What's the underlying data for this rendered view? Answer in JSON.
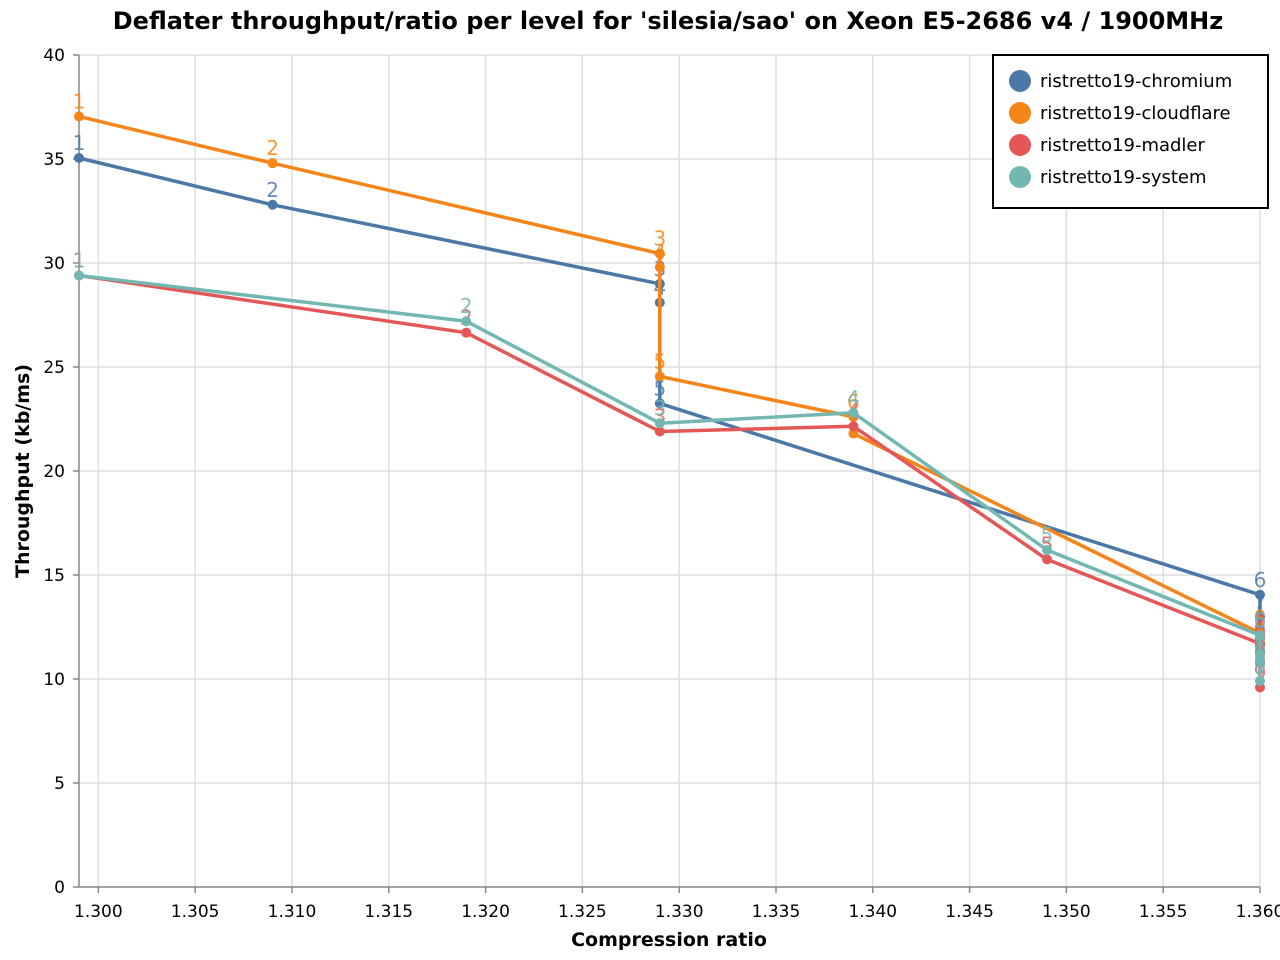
{
  "chart_data": {
    "type": "line",
    "title": "Deflater throughput/ratio per level for 'silesia/sao' on Xeon E5-2686 v4 / 1900MHz",
    "xlabel": "Compression ratio",
    "ylabel": "Throughput (kb/ms)",
    "xlim": [
      1.299,
      1.36
    ],
    "ylim": [
      0,
      40
    ],
    "x_ticks": [
      "1.300",
      "1.305",
      "1.310",
      "1.315",
      "1.320",
      "1.325",
      "1.330",
      "1.335",
      "1.340",
      "1.345",
      "1.350",
      "1.355",
      "1.360"
    ],
    "y_ticks": [
      "0",
      "5",
      "10",
      "15",
      "20",
      "25",
      "30",
      "35",
      "40"
    ],
    "grid": true,
    "legend_position": "top-right",
    "series": [
      {
        "name": "ristretto19-chromium",
        "color": "#4c78a8",
        "points": [
          {
            "level": "1",
            "x": 1.299,
            "y": 35.05
          },
          {
            "level": "2",
            "x": 1.309,
            "y": 32.8
          },
          {
            "level": "3",
            "x": 1.329,
            "y": 29.0
          },
          {
            "level": "4",
            "x": 1.329,
            "y": 28.1
          },
          {
            "level": "5",
            "x": 1.329,
            "y": 23.25
          },
          {
            "level": "6",
            "x": 1.36,
            "y": 14.05
          },
          {
            "level": "7",
            "x": 1.36,
            "y": 13.0
          },
          {
            "level": "8",
            "x": 1.36,
            "y": 11.6
          },
          {
            "level": "9",
            "x": 1.36,
            "y": 11.3
          }
        ]
      },
      {
        "name": "ristretto19-cloudflare",
        "color": "#f58518",
        "points": [
          {
            "level": "1",
            "x": 1.299,
            "y": 37.05
          },
          {
            "level": "2",
            "x": 1.309,
            "y": 34.8
          },
          {
            "level": "3",
            "x": 1.329,
            "y": 30.45
          },
          {
            "level": "4",
            "x": 1.329,
            "y": 29.8
          },
          {
            "level": "5",
            "x": 1.329,
            "y": 24.55
          },
          {
            "level": "6",
            "x": 1.339,
            "y": 22.6
          },
          {
            "level": "7",
            "x": 1.339,
            "y": 21.8
          },
          {
            "level": "8",
            "x": 1.36,
            "y": 12.2
          },
          {
            "level": "9",
            "x": 1.36,
            "y": 11.0
          }
        ]
      },
      {
        "name": "ristretto19-madler",
        "color": "#e45756",
        "points": [
          {
            "level": "1",
            "x": 1.299,
            "y": 29.4
          },
          {
            "level": "2",
            "x": 1.319,
            "y": 26.65
          },
          {
            "level": "3",
            "x": 1.329,
            "y": 21.9
          },
          {
            "level": "4",
            "x": 1.339,
            "y": 22.15
          },
          {
            "level": "5",
            "x": 1.349,
            "y": 15.75
          },
          {
            "level": "6",
            "x": 1.36,
            "y": 11.7
          },
          {
            "level": "7",
            "x": 1.36,
            "y": 12.0
          },
          {
            "level": "8",
            "x": 1.36,
            "y": 10.8
          },
          {
            "level": "9",
            "x": 1.36,
            "y": 9.6
          }
        ]
      },
      {
        "name": "ristretto19-system",
        "color": "#72b7b2",
        "points": [
          {
            "level": "1",
            "x": 1.299,
            "y": 29.4
          },
          {
            "level": "2",
            "x": 1.319,
            "y": 27.2
          },
          {
            "level": "3",
            "x": 1.329,
            "y": 22.3
          },
          {
            "level": "4",
            "x": 1.339,
            "y": 22.8
          },
          {
            "level": "5",
            "x": 1.349,
            "y": 16.2
          },
          {
            "level": "6",
            "x": 1.36,
            "y": 12.1
          },
          {
            "level": "7",
            "x": 1.36,
            "y": 11.2
          },
          {
            "level": "8",
            "x": 1.36,
            "y": 10.9
          },
          {
            "level": "9",
            "x": 1.36,
            "y": 9.9
          }
        ]
      }
    ]
  }
}
